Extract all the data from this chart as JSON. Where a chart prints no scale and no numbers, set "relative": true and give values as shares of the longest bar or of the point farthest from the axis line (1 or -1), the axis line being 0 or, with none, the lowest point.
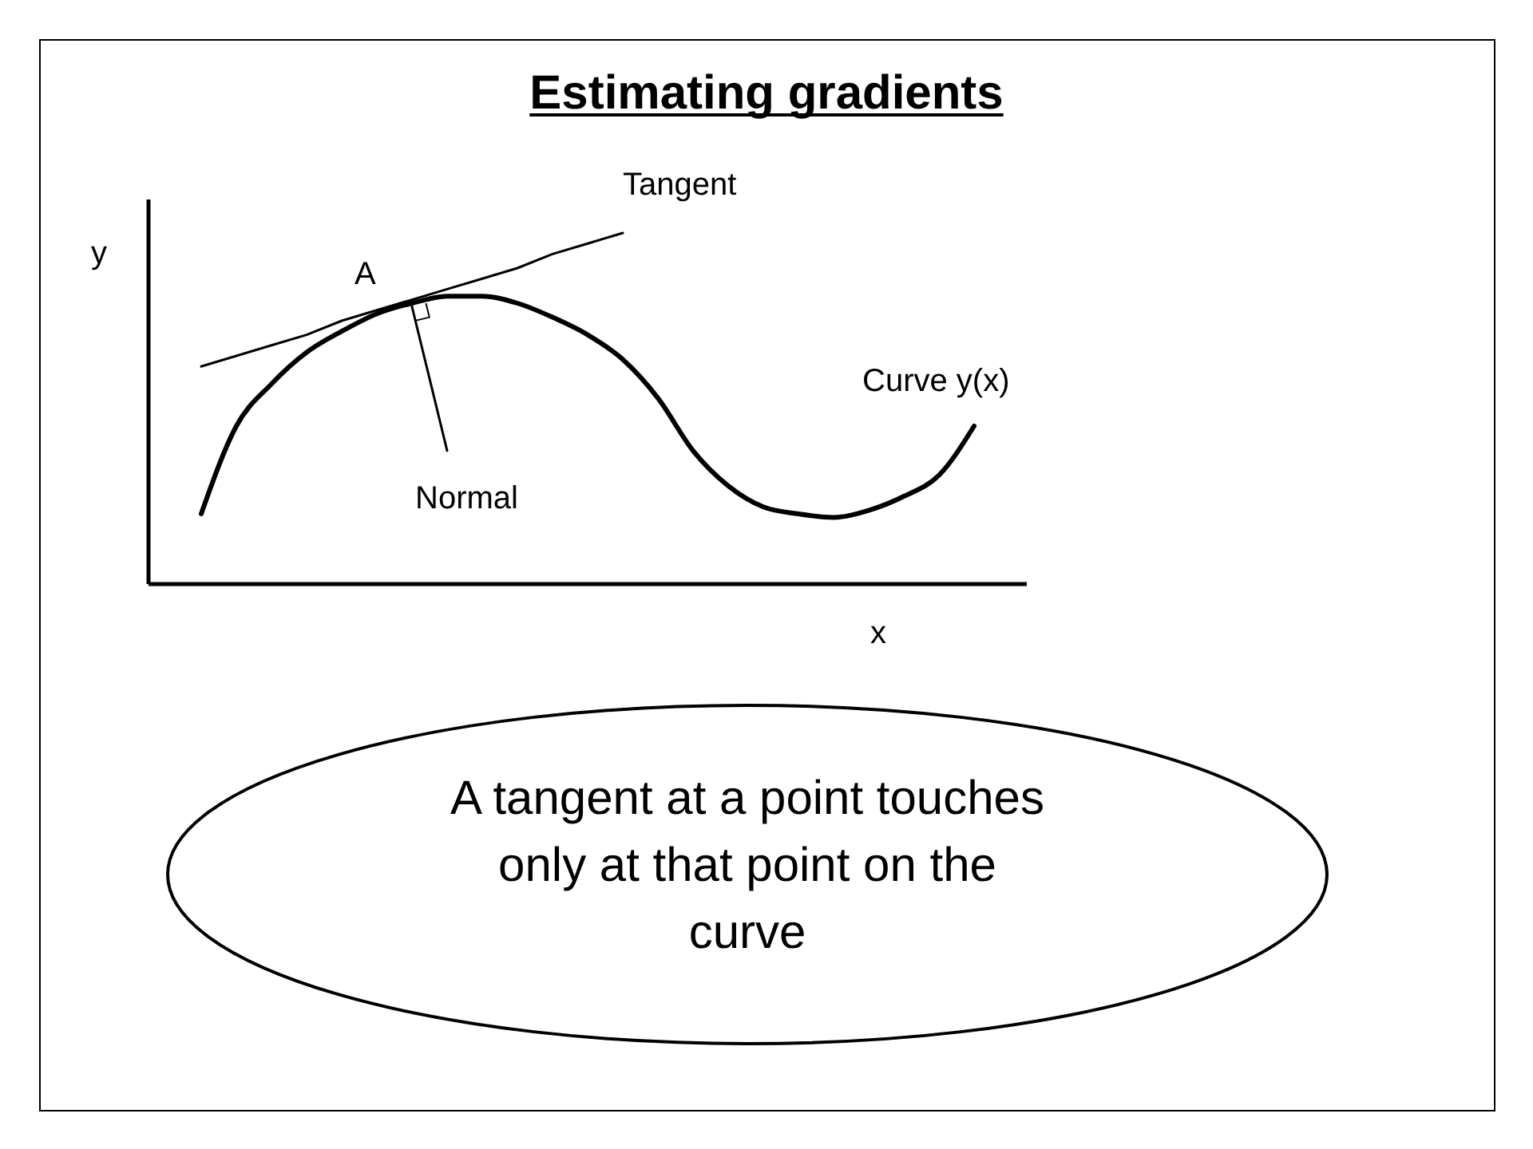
{
  "chart_data": {
    "type": "line",
    "title": "Estimating gradients",
    "xlabel": "x",
    "ylabel": "y",
    "relative": true,
    "categories": [
      null,
      null,
      null,
      null,
      null,
      null,
      null,
      null,
      null,
      null,
      null,
      null,
      null,
      null,
      null,
      null,
      null,
      null,
      null,
      null,
      null,
      null,
      null,
      null,
      null
    ],
    "series": [
      {
        "name": "Curve y(x)",
        "color": "#000000",
        "values": [
          null,
          0.2,
          0.45,
          0.57,
          0.66,
          0.72,
          0.77,
          0.8,
          0.82,
          0.82,
          0.8,
          0.76,
          0.71,
          0.64,
          0.53,
          0.38,
          0.28,
          0.22,
          0.2,
          0.19,
          0.21,
          0.25,
          0.31,
          0.45,
          null
        ]
      },
      {
        "name": "Tangent",
        "color": "#000000",
        "values": [
          null,
          0.62,
          0.65,
          0.68,
          0.71,
          0.75,
          0.78,
          0.81,
          0.84,
          0.87,
          0.9,
          0.94,
          0.97,
          1.0,
          null,
          null,
          null,
          null,
          null,
          null,
          null,
          null,
          null,
          null,
          null
        ]
      },
      {
        "name": "Normal",
        "color": "#000000",
        "values": [
          null,
          null,
          null,
          null,
          null,
          null,
          null,
          0.79,
          0.38,
          null,
          null,
          null,
          null,
          null,
          null,
          null,
          null,
          null,
          null,
          null,
          null,
          null,
          null,
          null,
          null
        ]
      }
    ],
    "annotations": [
      "A",
      "A tangent at a point touches only at that point on the curve"
    ]
  }
}
